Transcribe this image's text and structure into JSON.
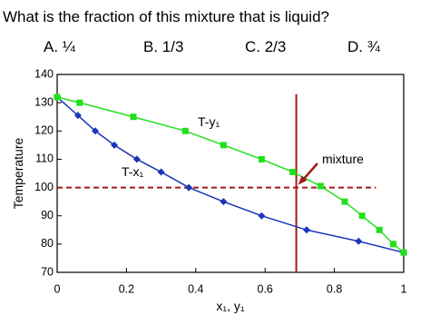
{
  "question": "What is the fraction of this mixture that is liquid?",
  "options": [
    "A.  ¼",
    "B.  1/3",
    "C.  2/3",
    "D.  ¾"
  ],
  "chart_data": {
    "type": "line",
    "x_label": "x₁, y₁",
    "y_label": "Temperature",
    "series": [
      {
        "name": "T-x₁",
        "color": "#1a35b8",
        "marker": "diamond",
        "x": [
          0,
          0.06,
          0.11,
          0.165,
          0.23,
          0.3,
          0.38,
          0.48,
          0.59,
          0.72,
          0.87,
          1
        ],
        "values": [
          132,
          125.5,
          120,
          115,
          110,
          105.5,
          100,
          95,
          90,
          85,
          81,
          77
        ]
      },
      {
        "name": "T-y₁",
        "color": "#22e01c",
        "marker": "square",
        "x": [
          0,
          0.065,
          0.22,
          0.37,
          0.48,
          0.59,
          0.68,
          0.76,
          0.83,
          0.88,
          0.93,
          0.97,
          1
        ],
        "values": [
          132,
          130,
          125,
          120,
          115,
          110,
          105.5,
          100.5,
          95,
          90,
          85,
          80,
          77
        ]
      }
    ],
    "xlim": [
      0,
      1
    ],
    "xticks": [
      0,
      0.2,
      0.4,
      0.6,
      0.8,
      1
    ],
    "ylim": [
      70,
      140
    ],
    "yticks": [
      70,
      80,
      90,
      100,
      110,
      120,
      130,
      140
    ],
    "hline": {
      "y": 100,
      "x": [
        0,
        0.92
      ],
      "color": "#a01a1a"
    },
    "vline": {
      "x": 0.69,
      "y": [
        70,
        133
      ],
      "color": "#a01a1a"
    },
    "annotation": "mixture"
  }
}
